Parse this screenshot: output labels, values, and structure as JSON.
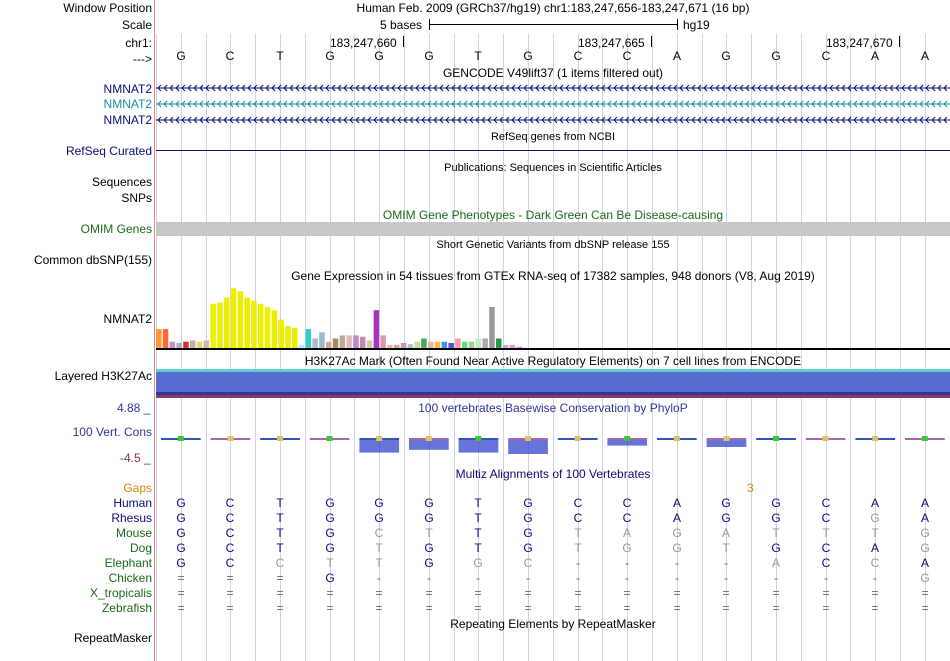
{
  "header": {
    "window_position_label": "Window Position",
    "window_position_text": "Human Feb. 2009 (GRCh37/hg19)   chr1:183,247,656-183,247,671 (16 bp)",
    "scale_label": "Scale",
    "scale_text": "5 bases",
    "scale_assembly": "hg19",
    "chrom_label": "chr1:",
    "positions": [
      "183,247,660",
      "183,247,665",
      "183,247,670"
    ],
    "strand_label": "--->"
  },
  "bases": [
    "G",
    "C",
    "T",
    "G",
    "G",
    "G",
    "T",
    "G",
    "C",
    "C",
    "A",
    "G",
    "G",
    "C",
    "A",
    "A"
  ],
  "gencode": {
    "title": "GENCODE V49lift37 (1 items filtered out)",
    "tracks": [
      {
        "label": "NMNAT2",
        "color": "#0c0c78"
      },
      {
        "label": "NMNAT2",
        "color": "#1a8fa8"
      },
      {
        "label": "NMNAT2",
        "color": "#0c0c78"
      }
    ]
  },
  "refseq": {
    "title": "RefSeq genes from NCBI",
    "label": "RefSeq Curated"
  },
  "publications": {
    "title": "Publications: Sequences in Scientific Articles",
    "label_line1": "Sequences",
    "label_line2": "SNPs"
  },
  "omim": {
    "title": "OMIM Gene Phenotypes - Dark Green Can Be Disease-causing",
    "label": "OMIM Genes"
  },
  "dbsnp": {
    "title": "Short Genetic Variants from dbSNP release 155",
    "label": "Common dbSNP(155)"
  },
  "gtex": {
    "title": "Gene Expression in 54 tissues from GTEx RNA-seq of 17382 samples, 948 donors (V8, Aug 2019)",
    "label": "NMNAT2"
  },
  "h3k27ac": {
    "title": "H3K27Ac Mark (Often Found Near Active Regulatory Elements) on 7 cell lines from ENCODE",
    "label": "Layered H3K27Ac"
  },
  "phylop": {
    "title": "100 vertebrates Basewise Conservation by PhyloP",
    "label": "100 Vert. Cons",
    "max": "4.88 _",
    "min": "-4.5 _"
  },
  "multiz": {
    "title": "Multiz Alignments of 100 Vertebrates",
    "gaps_label": "Gaps",
    "gap_count": "3",
    "species": [
      {
        "name": "Human",
        "seq": [
          "G",
          "C",
          "T",
          "G",
          "G",
          "G",
          "T",
          "G",
          "C",
          "C",
          "A",
          "G",
          "G",
          "C",
          "A",
          "A"
        ]
      },
      {
        "name": "Rhesus",
        "seq": [
          "G",
          "C",
          "T",
          "G",
          "G",
          "G",
          "T",
          "G",
          "C",
          "C",
          "A",
          "G",
          "G",
          "C",
          "G",
          "A"
        ]
      },
      {
        "name": "Mouse",
        "seq": [
          "G",
          "C",
          "T",
          "G",
          "C",
          "T",
          "T",
          "G",
          "T",
          "A",
          "G",
          "A",
          "T",
          "T",
          "T",
          "G"
        ]
      },
      {
        "name": "Dog",
        "seq": [
          "G",
          "C",
          "T",
          "G",
          "T",
          "G",
          "T",
          "G",
          "T",
          "G",
          "G",
          "T",
          "G",
          "C",
          "A",
          "G"
        ]
      },
      {
        "name": "Elephant",
        "seq": [
          "G",
          "C",
          "C",
          "T",
          "T",
          "G",
          "G",
          "C",
          "-",
          "-",
          "-",
          "-",
          "A",
          "C",
          "C",
          "A"
        ]
      },
      {
        "name": "Chicken",
        "seq": [
          "=",
          "=",
          "=",
          "G",
          "-",
          "-",
          "-",
          "-",
          "-",
          "-",
          "-",
          "-",
          "-",
          "-",
          "-",
          "G"
        ]
      },
      {
        "name": "X_tropicalis",
        "seq": [
          "=",
          "=",
          "=",
          "=",
          "=",
          "=",
          "=",
          "=",
          "=",
          "=",
          "=",
          "=",
          "=",
          "=",
          "=",
          "="
        ]
      },
      {
        "name": "Zebrafish",
        "seq": [
          "=",
          "=",
          "=",
          "=",
          "=",
          "=",
          "=",
          "=",
          "=",
          "=",
          "=",
          "=",
          "=",
          "=",
          "=",
          "="
        ]
      }
    ]
  },
  "repeatmasker": {
    "title": "Repeating Elements by RepeatMasker",
    "label": "RepeatMasker"
  },
  "chart_data": {
    "type": "bar",
    "title": "Gene Expression in 54 tissues from GTEx RNA-seq of 17382 samples, 948 donors (V8, Aug 2019)",
    "values": [
      0.3,
      0.3,
      0.1,
      0.08,
      0.1,
      0.12,
      0.1,
      0.12,
      0.7,
      0.72,
      0.8,
      0.95,
      0.9,
      0.8,
      0.75,
      0.7,
      0.65,
      0.6,
      0.45,
      0.35,
      0.32,
      0.05,
      0.3,
      0.15,
      0.25,
      0.1,
      0.15,
      0.2,
      0.2,
      0.2,
      0.18,
      0.12,
      0.6,
      0.2,
      0.05,
      0.05,
      0.08,
      0.06,
      0.1,
      0.15,
      0.1,
      0.1,
      0.1,
      0.08,
      0.15,
      0.1,
      0.1,
      0.15,
      0.15,
      0.65,
      0.15,
      0.05,
      0.05,
      0.02
    ],
    "colors": [
      "#ff9933",
      "#ff6633",
      "#bb99bb",
      "#aaaacc",
      "#cc3333",
      "#ccaaaa",
      "#dddd66",
      "#ccbbaa",
      "#eeee00",
      "#eeee00",
      "#eeee00",
      "#eeee00",
      "#eeee00",
      "#eeee00",
      "#eeee00",
      "#eeee00",
      "#eeee00",
      "#eeee00",
      "#eeee00",
      "#eeee00",
      "#eeee00",
      "#aaeeff",
      "#33cccc",
      "#aabbcc",
      "#99bbcc",
      "#ccaa99",
      "#aa8866",
      "#bbaa99",
      "#ddbbbb",
      "#bb88cc",
      "#cc88aa",
      "#ccccaa",
      "#aa33bb",
      "#dd99aa",
      "#ddbbaa",
      "#ccaa99",
      "#cc99bb",
      "#aabbdd",
      "#ccdd99",
      "#44aa55",
      "#ddbb99",
      "#ffbb33",
      "#3399ff",
      "#5555cc",
      "#ff99aa",
      "#66dd88",
      "#aacc99",
      "#bbeebb",
      "#aaaaaa",
      "#999999",
      "#229944",
      "#ccaacc",
      "#dd99dd",
      "#ee88ee"
    ]
  },
  "conservation": {
    "values": [
      0.05,
      0.05,
      0.15,
      0.1,
      0.9,
      0.7,
      0.9,
      1.0,
      0.3,
      0.4,
      0.2,
      0.5,
      0.1,
      0.2,
      0.3,
      0.25
    ]
  }
}
